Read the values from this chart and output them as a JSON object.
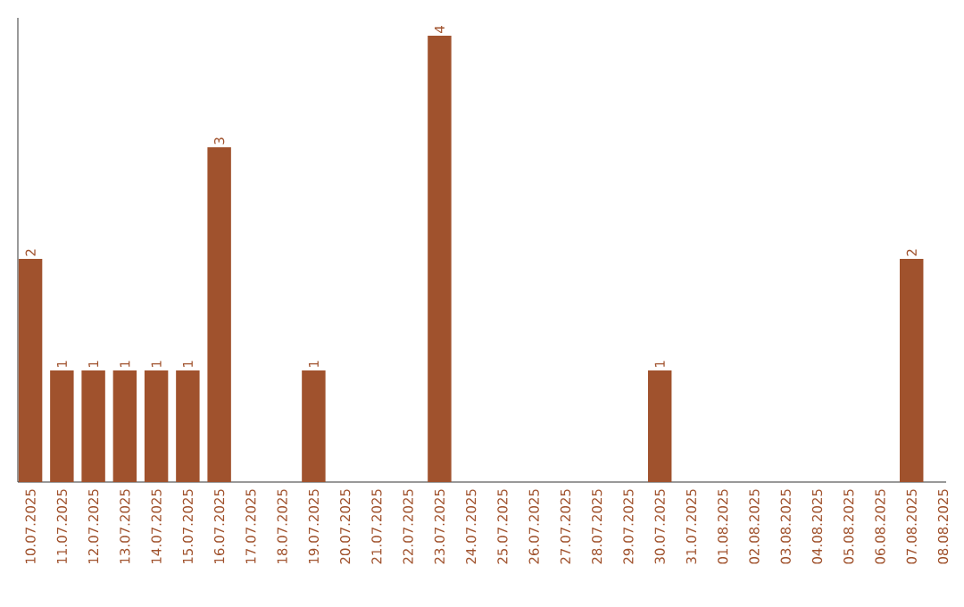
{
  "chart_data": {
    "type": "bar",
    "color": "#a0522d",
    "categories": [
      "10.07.2025",
      "11.07.2025",
      "12.07.2025",
      "13.07.2025",
      "14.07.2025",
      "15.07.2025",
      "16.07.2025",
      "17.07.2025",
      "18.07.2025",
      "19.07.2025",
      "20.07.2025",
      "21.07.2025",
      "22.07.2025",
      "23.07.2025",
      "24.07.2025",
      "25.07.2025",
      "26.07.2025",
      "27.07.2025",
      "28.07.2025",
      "29.07.2025",
      "30.07.2025",
      "31.07.2025",
      "01.08.2025",
      "02.08.2025",
      "03.08.2025",
      "04.08.2025",
      "05.08.2025",
      "06.08.2025",
      "07.08.2025",
      "08.08.2025"
    ],
    "values": [
      2,
      1,
      1,
      1,
      1,
      1,
      3,
      0,
      0,
      1,
      0,
      0,
      0,
      4,
      0,
      0,
      0,
      0,
      0,
      0,
      1,
      0,
      0,
      0,
      0,
      0,
      0,
      0,
      2,
      0
    ],
    "value_labels": [
      "2",
      "1",
      "1",
      "1",
      "1",
      "1",
      "3",
      null,
      null,
      "1",
      null,
      null,
      null,
      "4",
      null,
      null,
      null,
      null,
      null,
      null,
      "1",
      null,
      null,
      null,
      null,
      null,
      null,
      null,
      "2",
      null
    ]
  }
}
